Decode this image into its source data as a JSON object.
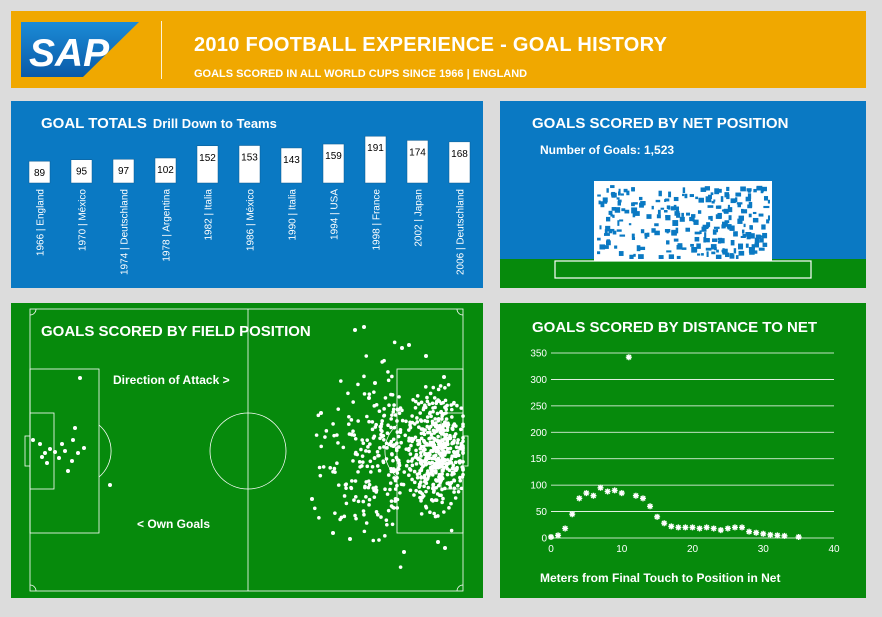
{
  "header": {
    "brand": "SAP",
    "title": "2010 FOOTBALL EXPERIENCE - GOAL HISTORY",
    "subtitle": "GOALS SCORED IN ALL WORLD CUPS SINCE 1966 | ENGLAND",
    "colors": {
      "accent": "#f0a800",
      "panel_blue": "#0a79c3",
      "panel_green": "#068a0c"
    }
  },
  "totals": {
    "title": "GOAL TOTALS",
    "drill": "Drill Down to Teams"
  },
  "net": {
    "title": "GOALS SCORED BY NET POSITION",
    "count_label": "Number of Goals: 1,523"
  },
  "field": {
    "title": "GOALS SCORED BY FIELD POSITION",
    "direction": "Direction of Attack >",
    "own_goals": "< Own Goals"
  },
  "distance": {
    "title": "GOALS SCORED BY DISTANCE TO NET",
    "xlabel": "Meters from Final Touch to Position in Net"
  },
  "chart_data": [
    {
      "type": "bar",
      "title": "GOAL TOTALS",
      "categories": [
        "1966 | England",
        "1970 | México",
        "1974 | Deutschland",
        "1978 | Argentina",
        "1982 | Italia",
        "1986 | México",
        "1990 | Italia",
        "1994 | USA",
        "1998 | France",
        "2002 | Japan",
        "2006 | Deutschland"
      ],
      "values": [
        89,
        95,
        97,
        102,
        152,
        153,
        143,
        159,
        191,
        174,
        168
      ]
    },
    {
      "type": "scatter",
      "title": "GOALS SCORED BY NET POSITION",
      "total_goals": 1523
    },
    {
      "type": "scatter",
      "title": "GOALS SCORED BY FIELD POSITION",
      "annotations": [
        "Direction of Attack >",
        "< Own Goals"
      ]
    },
    {
      "type": "line",
      "title": "GOALS SCORED BY DISTANCE TO NET",
      "xlabel": "Meters from Final Touch to Position in Net",
      "ylabel": "",
      "xlim": [
        0,
        40
      ],
      "ylim": [
        0,
        350
      ],
      "xticks": [
        0,
        10,
        20,
        30,
        40
      ],
      "yticks": [
        0,
        50,
        100,
        150,
        200,
        250,
        300,
        350
      ],
      "grid": true,
      "x": [
        0,
        1,
        2,
        3,
        4,
        5,
        6,
        7,
        8,
        9,
        10,
        11,
        12,
        13,
        14,
        15,
        16,
        17,
        18,
        19,
        20,
        21,
        22,
        23,
        24,
        25,
        26,
        27,
        28,
        29,
        30,
        31,
        32,
        33,
        35
      ],
      "y": [
        2,
        5,
        18,
        45,
        75,
        85,
        80,
        95,
        88,
        90,
        85,
        342,
        80,
        75,
        60,
        40,
        28,
        22,
        20,
        20,
        20,
        18,
        20,
        18,
        15,
        18,
        20,
        20,
        12,
        10,
        8,
        6,
        5,
        4,
        2
      ]
    }
  ]
}
